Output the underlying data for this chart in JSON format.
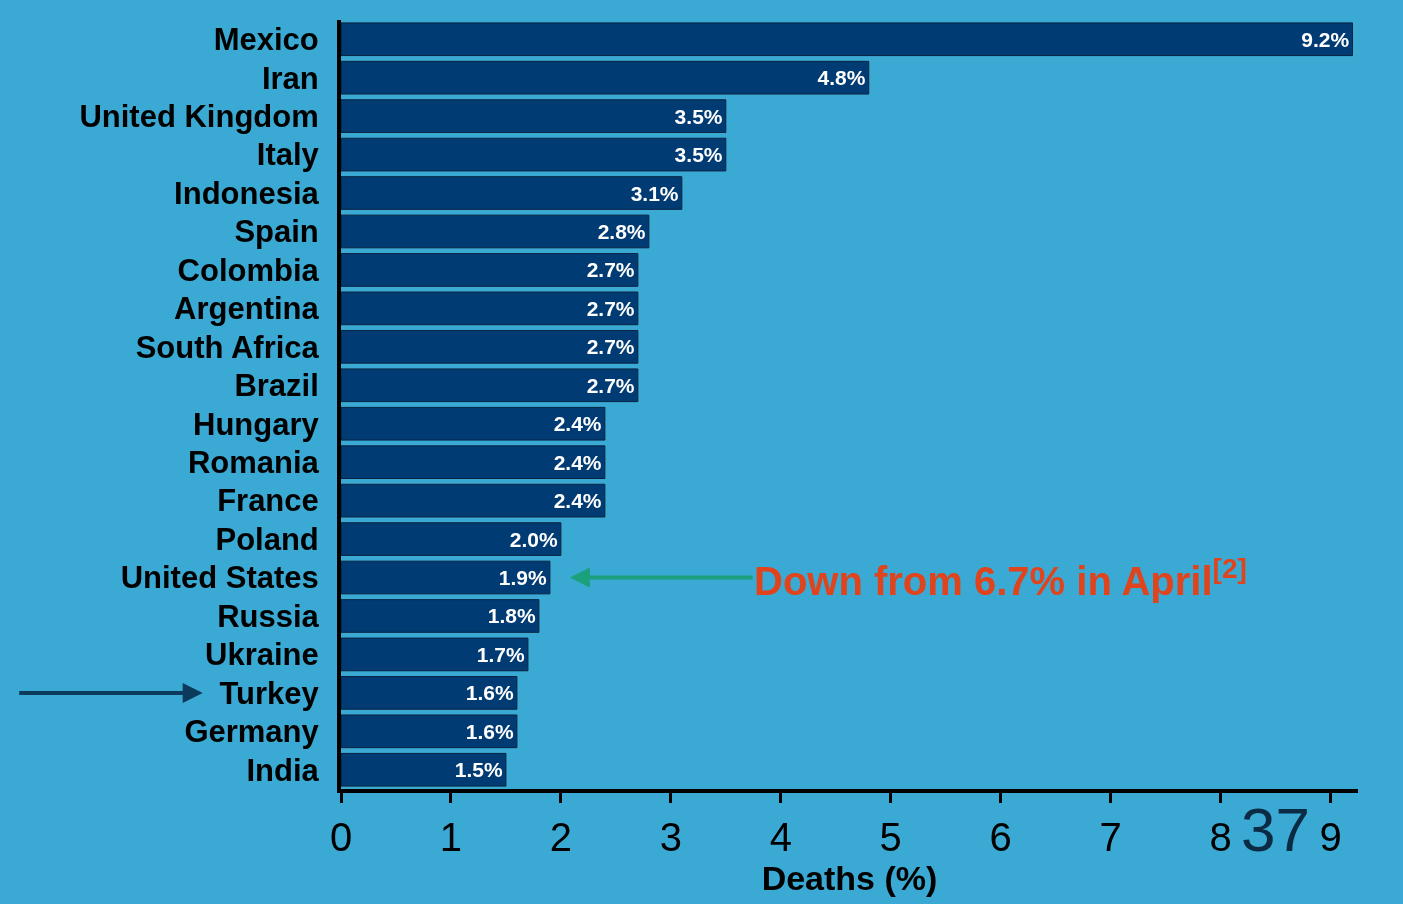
{
  "chart_data": {
    "type": "bar",
    "orientation": "horizontal",
    "xlabel": "Deaths (%)",
    "categories": [
      "Mexico",
      "Iran",
      "United Kingdom",
      "Italy",
      "Indonesia",
      "Spain",
      "Colombia",
      "Argentina",
      "South Africa",
      "Brazil",
      "Hungary",
      "Romania",
      "France",
      "Poland",
      "United States",
      "Russia",
      "Ukraine",
      "Turkey",
      "Germany",
      "India"
    ],
    "values": [
      9.2,
      4.8,
      3.5,
      3.5,
      3.1,
      2.8,
      2.7,
      2.7,
      2.7,
      2.7,
      2.4,
      2.4,
      2.4,
      2.0,
      1.9,
      1.8,
      1.7,
      1.6,
      1.6,
      1.5
    ],
    "color": "#003b73",
    "value_labels": [
      "9.2%",
      "4.8%",
      "3.5%",
      "3.5%",
      "3.1%",
      "2.8%",
      "2.7%",
      "2.7%",
      "2.7%",
      "2.7%",
      "2.4%",
      "2.4%",
      "2.4%",
      "2.0%",
      "1.9%",
      "1.8%",
      "1.7%",
      "1.6%",
      "1.6%",
      "1.5%"
    ],
    "xlim": [
      0,
      9.25
    ],
    "xticks": [
      0,
      1,
      2,
      3,
      4,
      5,
      6,
      7,
      8,
      9
    ],
    "grid": false,
    "legend": false,
    "annotations": [
      {
        "text": "Down from 6.7% in April$^{[2]}$",
        "x": 1.9,
        "y": "United States"
      },
      "37"
    ]
  }
}
